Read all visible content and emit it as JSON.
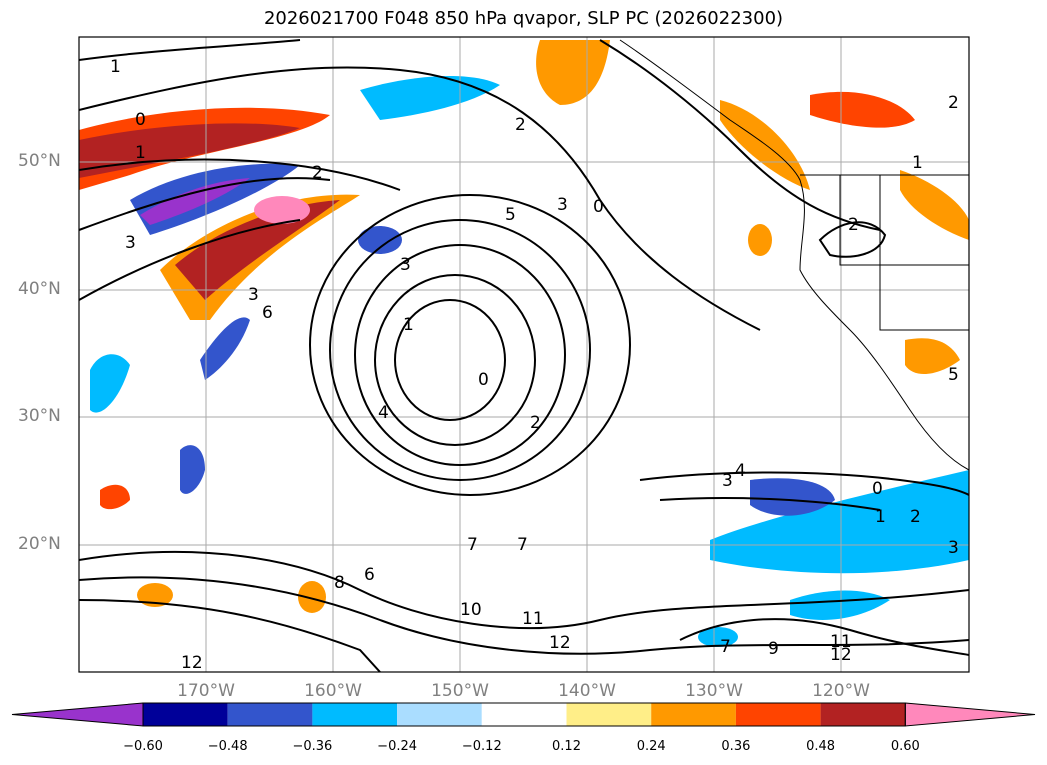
{
  "title": "2026021700 F048 850 hPa qvapor, SLP PC (2026022300)",
  "lat_labels": [
    "50°N",
    "40°N",
    "30°N",
    "20°N"
  ],
  "lon_labels": [
    "170°W",
    "160°W",
    "150°W",
    "140°W",
    "130°W",
    "120°W"
  ],
  "colorbar": {
    "ticks": [
      "−0.60",
      "−0.48",
      "−0.36",
      "−0.24",
      "−0.12",
      "0.12",
      "0.24",
      "0.36",
      "0.48",
      "0.60"
    ],
    "colors": [
      "#9933cc",
      "#000099",
      "#3355cc",
      "#00bbff",
      "#aaddff",
      "#ffffff",
      "#ffee88",
      "#ff9900",
      "#ff4400",
      "#b22222",
      "#ff88bb"
    ]
  },
  "contour_labels": [
    "1",
    "0",
    "1",
    "2",
    "3",
    "3",
    "6",
    "5",
    "3",
    "2",
    "0",
    "2",
    "3",
    "1",
    "0",
    "2",
    "4",
    "4",
    "3",
    "1",
    "2",
    "7",
    "7",
    "6",
    "8",
    "10",
    "11",
    "12",
    "12",
    "9",
    "11",
    "12",
    "1",
    "2",
    "0",
    "5",
    "3",
    "7"
  ]
}
